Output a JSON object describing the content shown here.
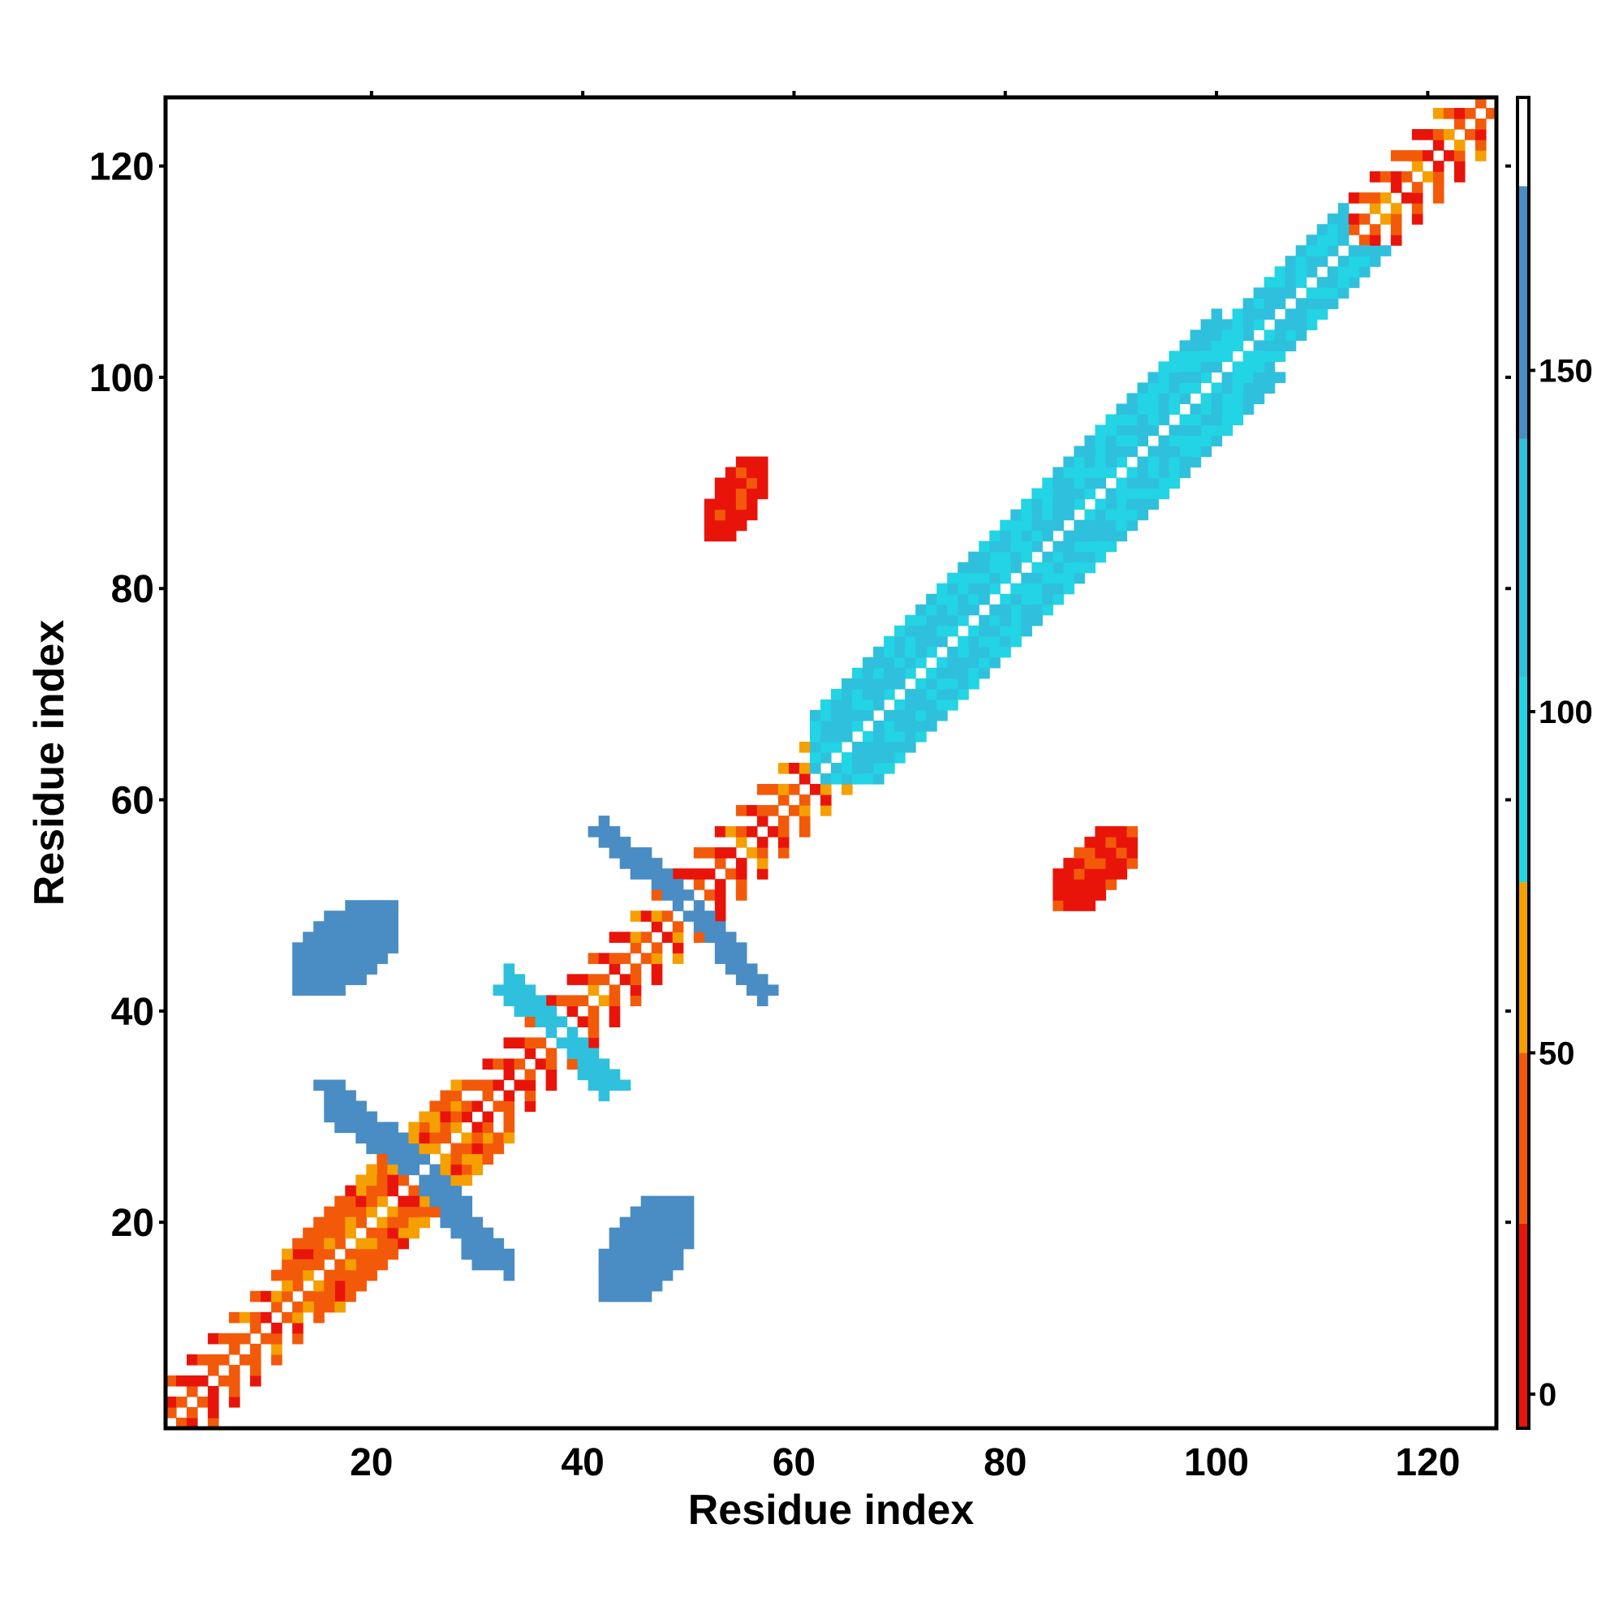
{
  "chart_data": {
    "type": "heatmap",
    "title": "",
    "xlabel": "Residue index",
    "ylabel": "Residue index",
    "xlim": [
      1,
      126
    ],
    "ylim": [
      1,
      126
    ],
    "x_ticks": [
      20,
      40,
      60,
      80,
      100,
      120
    ],
    "y_ticks": [
      20,
      40,
      60,
      80,
      100,
      120
    ],
    "colorbar": {
      "range": [
        -5,
        190
      ],
      "ticks": [
        0,
        50,
        100,
        150
      ],
      "bins": [
        {
          "from": -5,
          "to": 25,
          "color": "#e8140a"
        },
        {
          "from": 25,
          "to": 50,
          "color": "#f25a0a"
        },
        {
          "from": 50,
          "to": 75,
          "color": "#f5a000"
        },
        {
          "from": 75,
          "to": 105,
          "color": "#22d4e4"
        },
        {
          "from": 105,
          "to": 140,
          "color": "#2fc0dd"
        },
        {
          "from": 140,
          "to": 177,
          "color": "#4a8cc4"
        },
        {
          "from": 177,
          "to": 190,
          "color": "#ffffff"
        }
      ]
    },
    "regions": [
      {
        "kind": "band",
        "x": [
          1,
          126
        ],
        "offset": 4,
        "pattern": "alternating",
        "value_range": [
          0,
          60
        ],
        "note": "near-diagonal contacts along the full chain"
      },
      {
        "kind": "band",
        "x": [
          12,
          28
        ],
        "offset": 5,
        "value_range": [
          20,
          60
        ]
      },
      {
        "kind": "band",
        "x": [
          62,
          100
        ],
        "offset": 6,
        "value_range": [
          80,
          130
        ],
        "note": "cyan helix contacts"
      },
      {
        "kind": "band",
        "x": [
          92,
          112
        ],
        "offset": 4,
        "value_range": [
          80,
          130
        ]
      },
      {
        "kind": "anti_diagonal",
        "center": [
          25,
          25
        ],
        "arms": [
          [
            16,
            33
          ],
          [
            31,
            16
          ]
        ],
        "value": 160
      },
      {
        "kind": "anti_diagonal",
        "center": [
          50,
          50
        ],
        "arms": [
          [
            42,
            57
          ],
          [
            57,
            42
          ]
        ],
        "value": 160
      },
      {
        "kind": "anti_diagonal",
        "center": [
          38,
          38
        ],
        "arms": [
          [
            33,
            42
          ],
          [
            43,
            33
          ]
        ],
        "value": 120
      },
      {
        "kind": "patch",
        "x": [
          52,
          57
        ],
        "y": [
          85,
          92
        ],
        "value": 15
      },
      {
        "kind": "patch",
        "x": [
          85,
          92
        ],
        "y": [
          50,
          57
        ],
        "value": 15
      },
      {
        "kind": "patch",
        "x": [
          13,
          22
        ],
        "y": [
          42,
          50
        ],
        "value": 160
      },
      {
        "kind": "patch",
        "x": [
          42,
          50
        ],
        "y": [
          13,
          22
        ],
        "value": 160
      }
    ]
  }
}
